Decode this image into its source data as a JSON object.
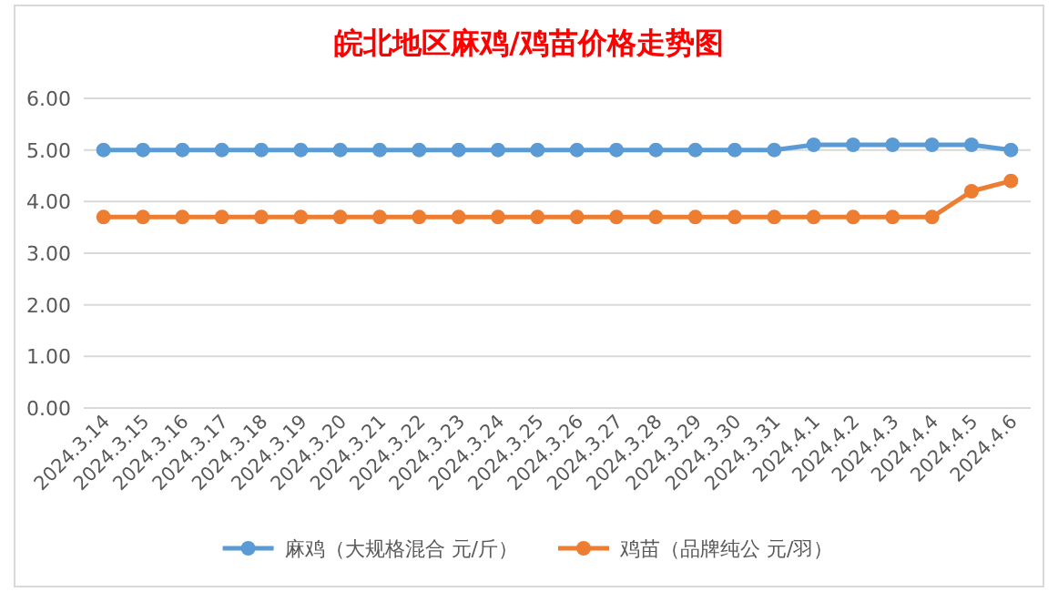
{
  "chart_data": {
    "type": "line",
    "title": "皖北地区麻鸡/鸡苗价格走势图",
    "categories": [
      "2024.3.14",
      "2024.3.15",
      "2024.3.16",
      "2024.3.17",
      "2024.3.18",
      "2024.3.19",
      "2024.3.20",
      "2024.3.21",
      "2024.3.22",
      "2024.3.23",
      "2024.3.24",
      "2024.3.25",
      "2024.3.26",
      "2024.3.27",
      "2024.3.28",
      "2024.3.29",
      "2024.3.30",
      "2024.3.31",
      "2024.4.1",
      "2024.4.2",
      "2024.4.3",
      "2024.4.4",
      "2024.4.5",
      "2024.4.6"
    ],
    "series": [
      {
        "name": "麻鸡（大规格混合 元/斤）",
        "color": "#5b9bd5",
        "values": [
          5.0,
          5.0,
          5.0,
          5.0,
          5.0,
          5.0,
          5.0,
          5.0,
          5.0,
          5.0,
          5.0,
          5.0,
          5.0,
          5.0,
          5.0,
          5.0,
          5.0,
          5.0,
          5.1,
          5.1,
          5.1,
          5.1,
          5.1,
          5.0
        ]
      },
      {
        "name": "鸡苗（品牌纯公 元/羽）",
        "color": "#ed7d31",
        "values": [
          3.7,
          3.7,
          3.7,
          3.7,
          3.7,
          3.7,
          3.7,
          3.7,
          3.7,
          3.7,
          3.7,
          3.7,
          3.7,
          3.7,
          3.7,
          3.7,
          3.7,
          3.7,
          3.7,
          3.7,
          3.7,
          3.7,
          4.2,
          4.4
        ]
      }
    ],
    "ylim": [
      0,
      6
    ],
    "yticks": [
      {
        "value": 0,
        "label": "0.00"
      },
      {
        "value": 1,
        "label": "1.00"
      },
      {
        "value": 2,
        "label": "2.00"
      },
      {
        "value": 3,
        "label": "3.00"
      },
      {
        "value": 4,
        "label": "4.00"
      },
      {
        "value": 5,
        "label": "5.00"
      },
      {
        "value": 6,
        "label": "6.00"
      }
    ],
    "grid": "y",
    "legend": "bottom",
    "marker": "circle",
    "line_style": "solid"
  }
}
